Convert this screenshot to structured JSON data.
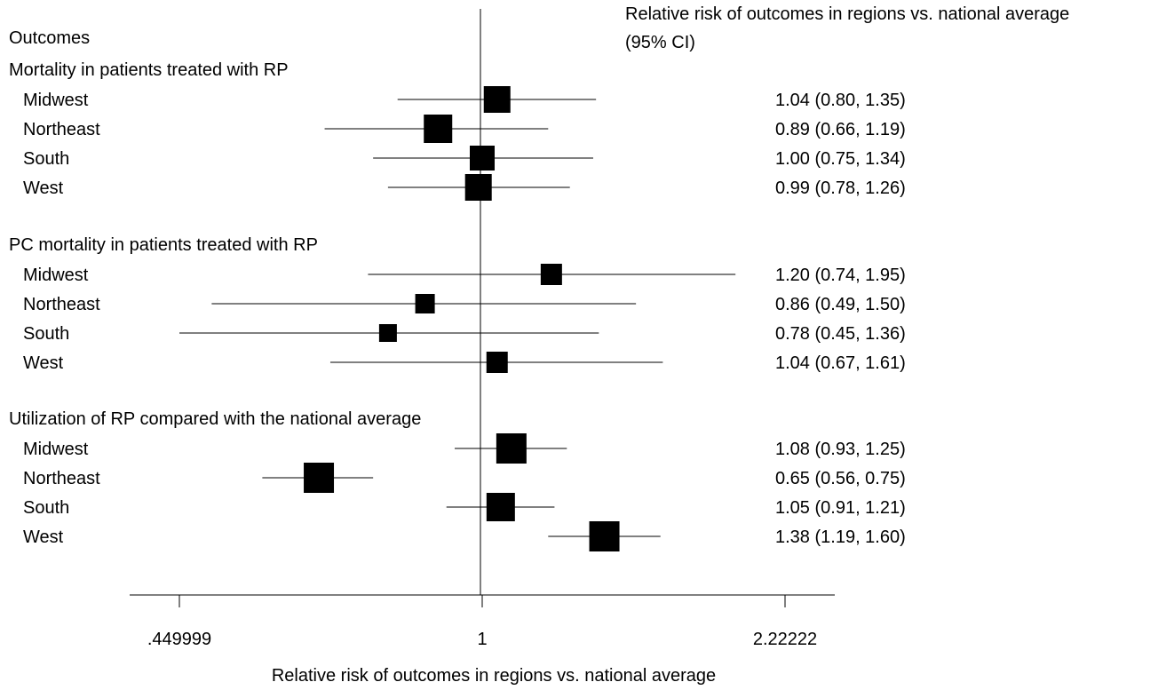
{
  "chart_data": {
    "type": "forest",
    "scale": "log",
    "xlim": [
      0.449999,
      2.22222
    ],
    "reference_value": 1,
    "xticks": [
      0.449999,
      1,
      2.22222
    ],
    "xtick_labels": [
      ".449999",
      "1",
      "2.22222"
    ],
    "xlabel": "Relative risk of outcomes in regions vs. national average",
    "column_header": "Outcomes",
    "estimate_header": [
      "Relative risk of outcomes in regions vs. national average",
      "(95% CI)"
    ],
    "groups": [
      {
        "title": "Mortality in patients treated with RP",
        "rows": [
          {
            "label": "Midwest",
            "est": 1.04,
            "lo": 0.8,
            "hi": 1.35,
            "text": "1.04 (0.80, 1.35)"
          },
          {
            "label": "Northeast",
            "est": 0.89,
            "lo": 0.66,
            "hi": 1.19,
            "text": "0.89 (0.66, 1.19)"
          },
          {
            "label": "South",
            "est": 1.0,
            "lo": 0.75,
            "hi": 1.34,
            "text": "1.00 (0.75, 1.34)"
          },
          {
            "label": "West",
            "est": 0.99,
            "lo": 0.78,
            "hi": 1.26,
            "text": "0.99 (0.78, 1.26)"
          }
        ]
      },
      {
        "title": "PC mortality in patients treated with RP",
        "rows": [
          {
            "label": "Midwest",
            "est": 1.2,
            "lo": 0.74,
            "hi": 1.95,
            "text": "1.20 (0.74, 1.95)"
          },
          {
            "label": "Northeast",
            "est": 0.86,
            "lo": 0.49,
            "hi": 1.5,
            "text": "0.86 (0.49, 1.50)"
          },
          {
            "label": "South",
            "est": 0.78,
            "lo": 0.45,
            "hi": 1.36,
            "text": "0.78 (0.45, 1.36)"
          },
          {
            "label": "West",
            "est": 1.04,
            "lo": 0.67,
            "hi": 1.61,
            "text": "1.04 (0.67, 1.61)"
          }
        ]
      },
      {
        "title": "Utilization of RP compared with the national average",
        "rows": [
          {
            "label": "Midwest",
            "est": 1.08,
            "lo": 0.93,
            "hi": 1.25,
            "text": "1.08 (0.93, 1.25)"
          },
          {
            "label": "Northeast",
            "est": 0.65,
            "lo": 0.56,
            "hi": 0.75,
            "text": "0.65 (0.56, 0.75)"
          },
          {
            "label": "South",
            "est": 1.05,
            "lo": 0.91,
            "hi": 1.21,
            "text": "1.05 (0.91, 1.21)"
          },
          {
            "label": "West",
            "est": 1.38,
            "lo": 1.19,
            "hi": 1.6,
            "text": "1.38 (1.19, 1.60)"
          }
        ]
      }
    ]
  }
}
